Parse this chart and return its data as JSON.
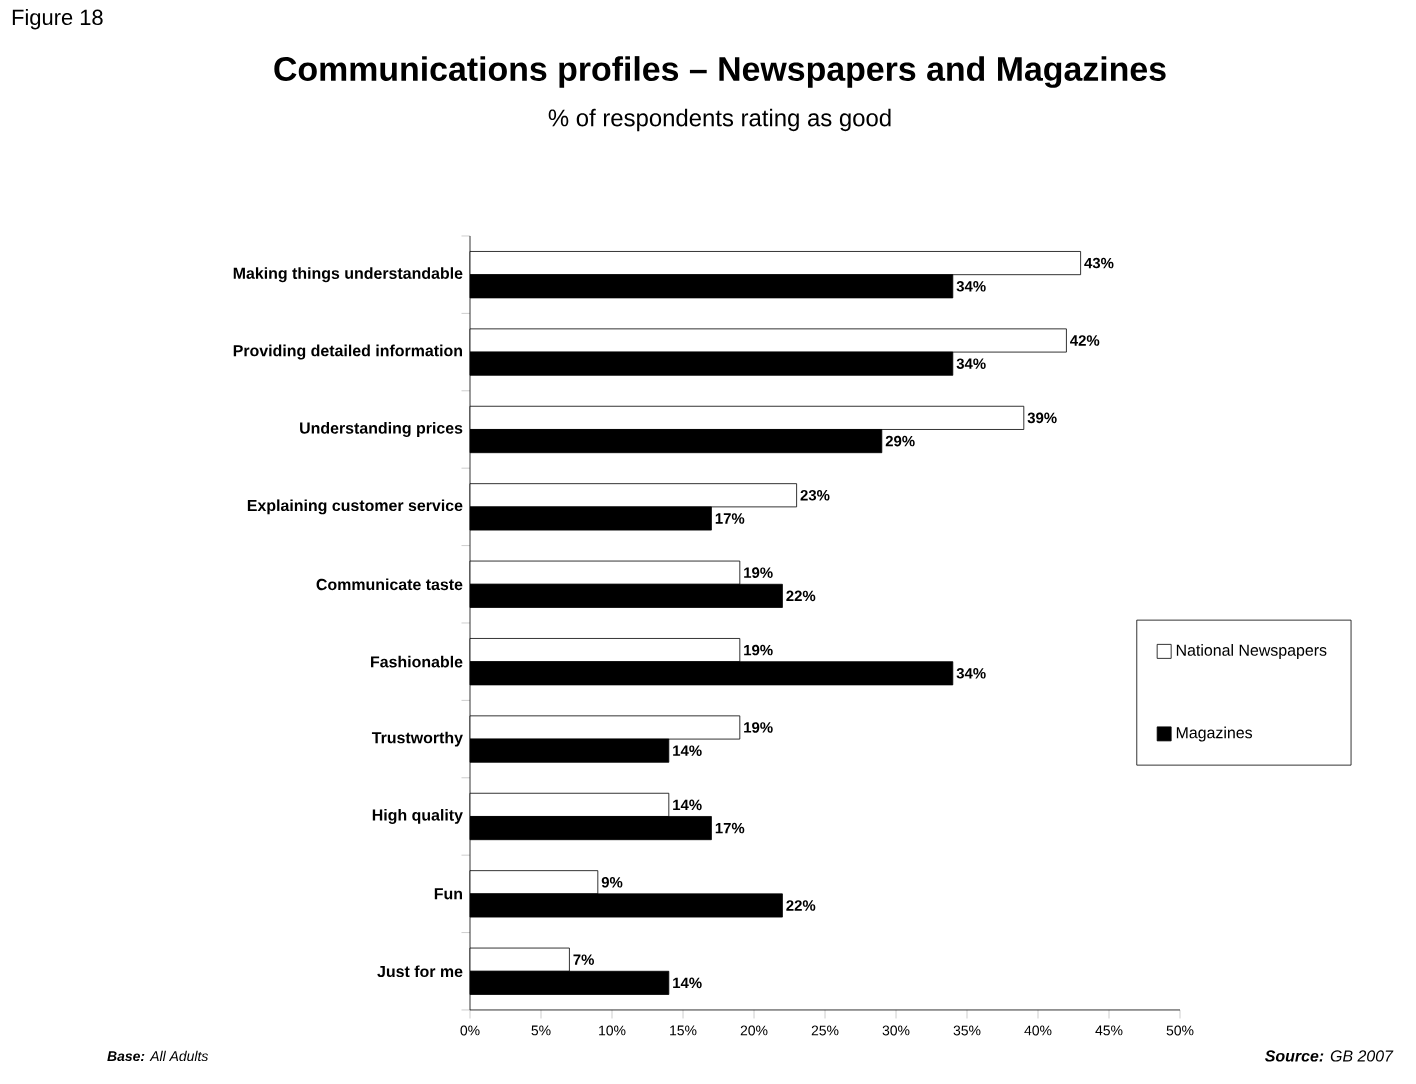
{
  "chart_data": {
    "type": "bar",
    "orientation": "horizontal",
    "title": "Communications profiles – Newspapers and Magazines",
    "subtitle": "% of respondents rating as good",
    "categories": [
      "Making things understandable",
      "Providing detailed information",
      "Understanding prices",
      "Explaining customer service",
      "Communicate taste",
      "Fashionable",
      "Trustworthy",
      "High quality",
      "Fun",
      "Just for me"
    ],
    "series": [
      {
        "name": "National Newspapers",
        "color": "#ffffff",
        "values": [
          43,
          42,
          39,
          23,
          19,
          19,
          19,
          14,
          9,
          7
        ],
        "value_labels": [
          "43%",
          "42%",
          "39%",
          "23%",
          "19%",
          "19%",
          "19%",
          "14%",
          "9%",
          "7%"
        ]
      },
      {
        "name": "Magazines",
        "color": "#000000",
        "values": [
          34,
          34,
          29,
          17,
          22,
          34,
          14,
          17,
          22,
          14
        ],
        "value_labels": [
          "34%",
          "34%",
          "29%",
          "17%",
          "22%",
          "34%",
          "14%",
          "17%",
          "22%",
          "14%"
        ]
      }
    ],
    "xlim": [
      0,
      50
    ],
    "xticks": [
      {
        "value": 0,
        "label": "0%"
      },
      {
        "value": 5,
        "label": "5%"
      },
      {
        "value": 10,
        "label": "10%"
      },
      {
        "value": 15,
        "label": "15%"
      },
      {
        "value": 20,
        "label": "20%"
      },
      {
        "value": 25,
        "label": "25%"
      },
      {
        "value": 30,
        "label": "30%"
      },
      {
        "value": 35,
        "label": "35%"
      },
      {
        "value": 40,
        "label": "40%"
      },
      {
        "value": 45,
        "label": "45%"
      },
      {
        "value": 50,
        "label": "50%"
      }
    ],
    "legend": "right",
    "annotations": [
      "Figure 18",
      "**Base:** All Adults",
      "**Source:** GB 2007"
    ]
  }
}
